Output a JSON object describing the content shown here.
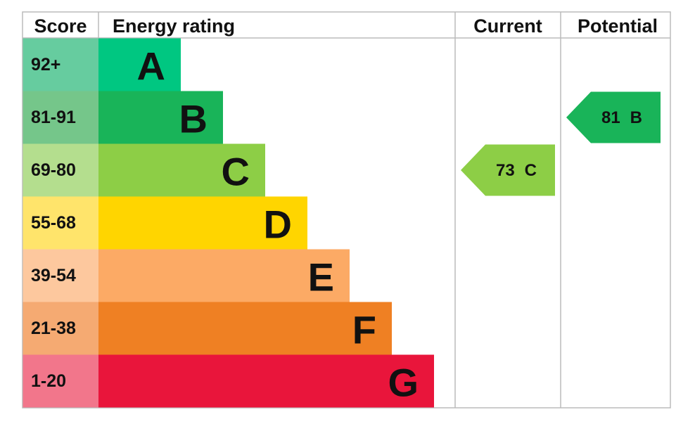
{
  "headers": {
    "score": "Score",
    "rating": "Energy rating",
    "current": "Current",
    "potential": "Potential"
  },
  "bands": [
    {
      "score": "92+",
      "letter": "A",
      "color": "#00c781",
      "light": "#66cc9f"
    },
    {
      "score": "81-91",
      "letter": "B",
      "color": "#19b459",
      "light": "#75c68a"
    },
    {
      "score": "69-80",
      "letter": "C",
      "color": "#8dce46",
      "light": "#b4de8e"
    },
    {
      "score": "55-68",
      "letter": "D",
      "color": "#ffd500",
      "light": "#ffe46b"
    },
    {
      "score": "39-54",
      "letter": "E",
      "color": "#fcaa65",
      "light": "#fdc89e"
    },
    {
      "score": "21-38",
      "letter": "F",
      "color": "#ef8023",
      "light": "#f5aa72"
    },
    {
      "score": "1-20",
      "letter": "G",
      "color": "#e9153b",
      "light": "#f2768b"
    }
  ],
  "current": {
    "value": 73,
    "letter": "C"
  },
  "potential": {
    "value": 81,
    "letter": "B"
  }
}
